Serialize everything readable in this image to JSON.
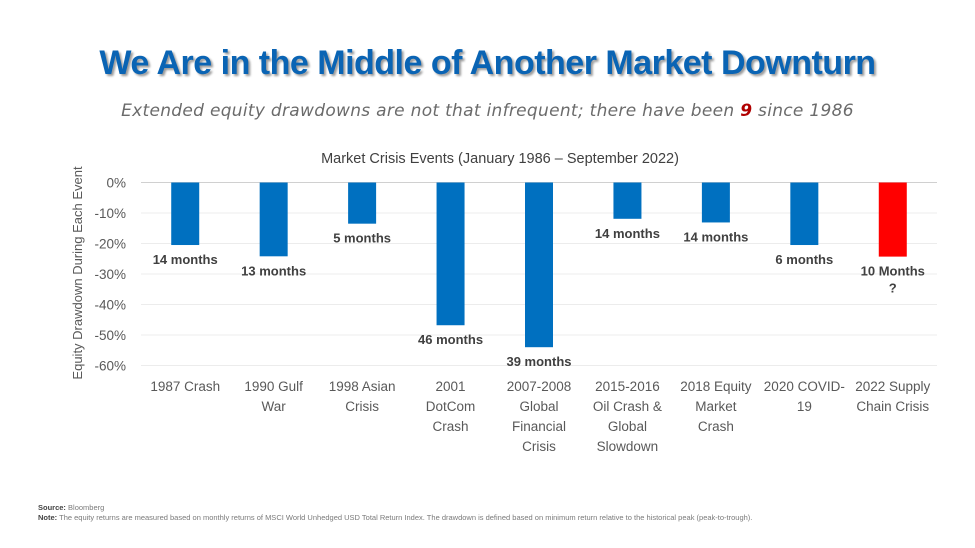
{
  "slide": {
    "title": "We Are in the Middle of Another Market Downturn",
    "subtitle_before": "Extended equity drawdowns are not that infrequent; there have been ",
    "subtitle_highlight": "9",
    "subtitle_after": " since 1986",
    "source_label": "Source:",
    "source_text": " Bloomberg",
    "note_label": "Note:",
    "note_text": " The equity returns are measured based on monthly returns of MSCI World Unhedged USD Total Return Index. The drawdown is defined based on minimum return relative to the historical peak (peak-to-trough).",
    "colors": {
      "title": "#0a64b4",
      "highlight": "#b00000"
    }
  },
  "chart_data": {
    "type": "bar",
    "title": "Market Crisis Events (January 1986 – September 2022)",
    "xlabel": "",
    "ylabel": "Equity Drawdown During Each Event",
    "ylim": [
      -60,
      0
    ],
    "yticks": [
      0,
      -10,
      -20,
      -30,
      -40,
      -50,
      -60
    ],
    "ytick_labels": [
      "0%",
      "-10%",
      "-20%",
      "-30%",
      "-40%",
      "-50%",
      "-60%"
    ],
    "grid": true,
    "legend": "none",
    "categories": [
      [
        "1987 Crash"
      ],
      [
        "1990 Gulf",
        "War"
      ],
      [
        "1998 Asian",
        "Crisis"
      ],
      [
        "2001",
        "DotCom",
        "Crash"
      ],
      [
        "2007-2008",
        "Global",
        "Financial",
        "Crisis"
      ],
      [
        "2015-2016",
        "Oil Crash &",
        "Global",
        "Slowdown"
      ],
      [
        "2018 Equity",
        "Market",
        "Crash"
      ],
      [
        "2020 COVID-",
        "19"
      ],
      [
        "2022 Supply",
        "Chain Crisis"
      ]
    ],
    "values": [
      -20.5,
      -24.2,
      -13.5,
      -46.8,
      -54.0,
      -11.9,
      -13.1,
      -20.5,
      -24.3
    ],
    "data_labels": [
      [
        "14 months"
      ],
      [
        "13 months"
      ],
      [
        "5 months"
      ],
      [
        "46 months"
      ],
      [
        "39 months"
      ],
      [
        "14 months"
      ],
      [
        "14 months"
      ],
      [
        "6 months"
      ],
      [
        "10 Months",
        "?"
      ]
    ],
    "bar_colors": [
      "#0070c0",
      "#0070c0",
      "#0070c0",
      "#0070c0",
      "#0070c0",
      "#0070c0",
      "#0070c0",
      "#0070c0",
      "#ff0000"
    ]
  }
}
